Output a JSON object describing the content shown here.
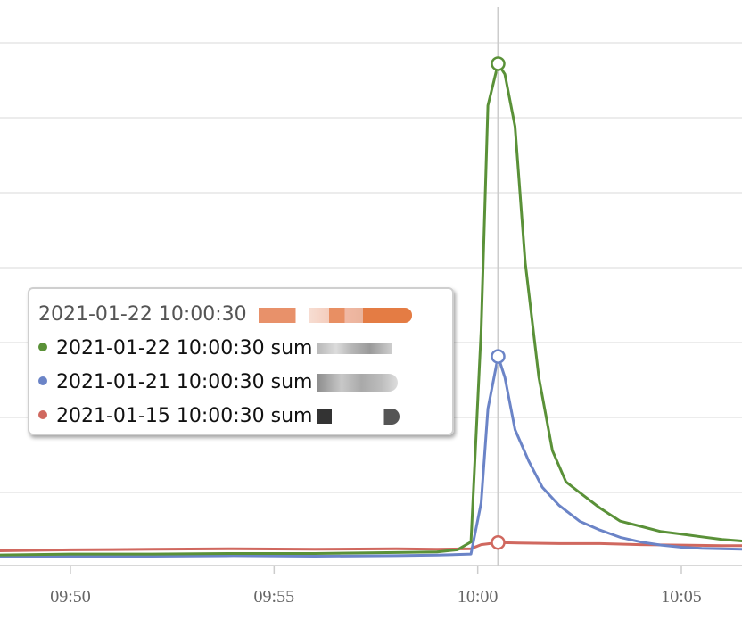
{
  "colors": {
    "green": "#5a9138",
    "blue": "#6b84c7",
    "red": "#d0685f",
    "grid": "#e6e6e6",
    "crosshair": "#cccccc"
  },
  "tooltip": {
    "header": "2021-01-22 10:00:30",
    "rows": [
      {
        "label": "2021-01-22 10:00:30 sum",
        "color": "#5a9138"
      },
      {
        "label": "2021-01-21 10:00:30 sum",
        "color": "#6b84c7"
      },
      {
        "label": "2021-01-15 10:00:30 sum",
        "color": "#d0685f"
      }
    ]
  },
  "chart_data": {
    "type": "line",
    "x_unit": "time (HH:MM, 2021-01-22)",
    "xlim": [
      "09:48",
      "10:06:30"
    ],
    "ylim": [
      0,
      100
    ],
    "x_ticks": [
      "09:50",
      "09:55",
      "10:00",
      "10:05"
    ],
    "grid": true,
    "crosshair": "10:00:30",
    "series": [
      {
        "color": "#5a9138",
        "points": [
          [
            "09:48",
            2.0
          ],
          [
            "09:50",
            2.2
          ],
          [
            "09:52",
            2.2
          ],
          [
            "09:54",
            2.3
          ],
          [
            "09:56",
            2.3
          ],
          [
            "09:58",
            2.5
          ],
          [
            "09:59",
            2.6
          ],
          [
            "09:59:30",
            3.0
          ],
          [
            "09:59:50",
            4.5
          ],
          [
            "10:00:05",
            45
          ],
          [
            "10:00:15",
            88
          ],
          [
            "10:00:30",
            96
          ],
          [
            "10:00:40",
            94
          ],
          [
            "10:00:55",
            84
          ],
          [
            "10:01:10",
            58
          ],
          [
            "10:01:30",
            36
          ],
          [
            "10:01:50",
            22
          ],
          [
            "10:02:10",
            16
          ],
          [
            "10:02:30",
            14
          ],
          [
            "10:03",
            11
          ],
          [
            "10:03:30",
            8.5
          ],
          [
            "10:04",
            7.5
          ],
          [
            "10:04:30",
            6.5
          ],
          [
            "10:05",
            6.0
          ],
          [
            "10:05:30",
            5.5
          ],
          [
            "10:06",
            5.0
          ],
          [
            "10:06:30",
            4.7
          ]
        ]
      },
      {
        "color": "#6b84c7",
        "points": [
          [
            "09:48",
            1.7
          ],
          [
            "09:50",
            1.8
          ],
          [
            "09:52",
            1.8
          ],
          [
            "09:54",
            1.9
          ],
          [
            "09:56",
            1.8
          ],
          [
            "09:58",
            1.9
          ],
          [
            "09:59",
            2.0
          ],
          [
            "09:59:50",
            2.2
          ],
          [
            "10:00:05",
            12
          ],
          [
            "10:00:15",
            30
          ],
          [
            "10:00:30",
            40
          ],
          [
            "10:00:40",
            36
          ],
          [
            "10:00:55",
            26
          ],
          [
            "10:01:15",
            20
          ],
          [
            "10:01:35",
            15
          ],
          [
            "10:02",
            11.5
          ],
          [
            "10:02:30",
            8.5
          ],
          [
            "10:03",
            6.8
          ],
          [
            "10:03:30",
            5.4
          ],
          [
            "10:04",
            4.5
          ],
          [
            "10:04:30",
            3.9
          ],
          [
            "10:05",
            3.5
          ],
          [
            "10:05:30",
            3.3
          ],
          [
            "10:06",
            3.2
          ],
          [
            "10:06:30",
            3.1
          ]
        ]
      },
      {
        "color": "#d0685f",
        "points": [
          [
            "09:48",
            2.8
          ],
          [
            "09:50",
            3.0
          ],
          [
            "09:52",
            3.1
          ],
          [
            "09:54",
            3.2
          ],
          [
            "09:56",
            3.1
          ],
          [
            "09:58",
            3.2
          ],
          [
            "09:59",
            3.1
          ],
          [
            "09:59:50",
            3.2
          ],
          [
            "10:00:05",
            4.0
          ],
          [
            "10:00:30",
            4.4
          ],
          [
            "10:01",
            4.3
          ],
          [
            "10:02",
            4.2
          ],
          [
            "10:03",
            4.2
          ],
          [
            "10:04",
            4.0
          ],
          [
            "10:05",
            3.9
          ],
          [
            "10:06",
            3.8
          ],
          [
            "10:06:30",
            3.8
          ]
        ]
      }
    ]
  }
}
